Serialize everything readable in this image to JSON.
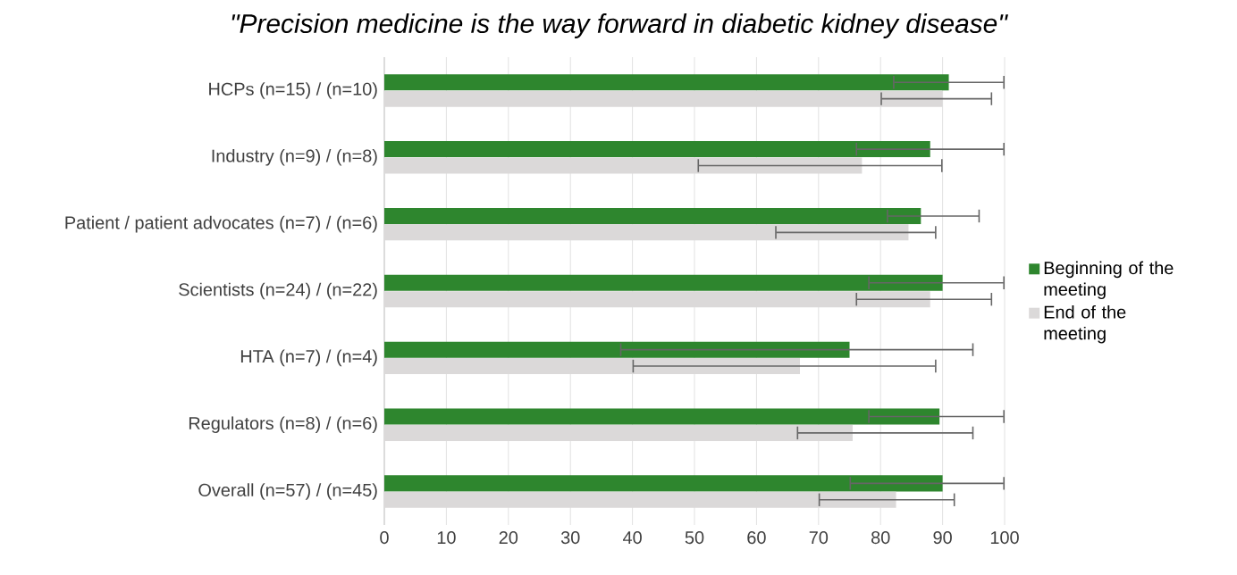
{
  "chart_data": {
    "type": "bar",
    "orientation": "horizontal",
    "title": "\"Precision medicine is the way forward in diabetic kidney disease\"",
    "categories": [
      "HCPs (n=15) / (n=10)",
      "Industry (n=9) / (n=8)",
      "Patient / patient advocates (n=7) / (n=6)",
      "Scientists (n=24) / (n=22)",
      "HTA (n=7) / (n=4)",
      "Regulators (n=8) / (n=6)",
      "Overall (n=57) / (n=45)"
    ],
    "series": [
      {
        "name": "Beginning of the meeting",
        "color": "#2e862e",
        "values": [
          91,
          88,
          86.5,
          90,
          75,
          89.5,
          90
        ],
        "errors": [
          [
            82,
            100
          ],
          [
            76,
            100
          ],
          [
            81,
            96
          ],
          [
            78,
            100
          ],
          [
            38,
            95
          ],
          [
            78,
            100
          ],
          [
            75,
            100
          ]
        ]
      },
      {
        "name": "End of the meeting",
        "color": "#dbd9d9",
        "values": [
          90,
          77,
          84.5,
          88,
          67,
          75.5,
          82.5
        ],
        "errors": [
          [
            80,
            98
          ],
          [
            50.5,
            90
          ],
          [
            63,
            89
          ],
          [
            76,
            98
          ],
          [
            40,
            89
          ],
          [
            66.5,
            95
          ],
          [
            70,
            92
          ]
        ]
      }
    ],
    "xlim": [
      0,
      100
    ],
    "xticks": [
      0,
      10,
      20,
      30,
      40,
      50,
      60,
      70,
      80,
      90,
      100
    ],
    "grid": "x",
    "legend": "right"
  }
}
